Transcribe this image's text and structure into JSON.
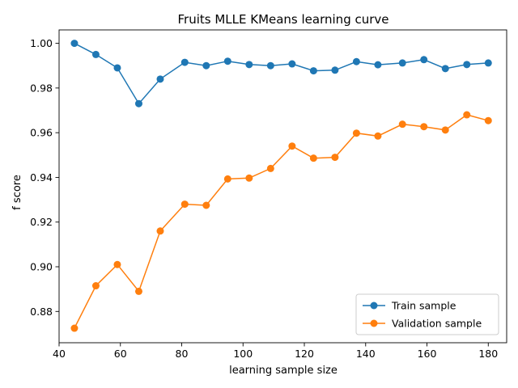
{
  "chart_data": {
    "type": "line",
    "title": "Fruits MLLE KMeans learning curve",
    "xlabel": "learning sample size",
    "ylabel": "f score",
    "xlim": [
      40,
      186
    ],
    "ylim": [
      0.866,
      1.006
    ],
    "xticks": [
      40,
      60,
      80,
      100,
      120,
      140,
      160,
      180
    ],
    "yticks": [
      0.88,
      0.9,
      0.92,
      0.94,
      0.96,
      0.98,
      1.0
    ],
    "ytick_labels": [
      "0.88",
      "0.90",
      "0.92",
      "0.94",
      "0.96",
      "0.98",
      "1.00"
    ],
    "grid": false,
    "legend_position": "lower-right",
    "x": [
      45,
      52,
      59,
      66,
      73,
      81,
      88,
      95,
      102,
      109,
      116,
      123,
      130,
      137,
      144,
      152,
      159,
      166,
      173,
      180
    ],
    "series": [
      {
        "name": "Train sample",
        "color": "#1f77b4",
        "values": [
          1.0,
          0.995,
          0.989,
          0.973,
          0.984,
          0.9915,
          0.99,
          0.992,
          0.9905,
          0.99,
          0.9908,
          0.9877,
          0.988,
          0.9918,
          0.9904,
          0.9912,
          0.9927,
          0.9887,
          0.9905,
          0.9912
        ]
      },
      {
        "name": "Validation sample",
        "color": "#ff7f0e",
        "values": [
          0.8725,
          0.8915,
          0.901,
          0.889,
          0.916,
          0.928,
          0.9275,
          0.9393,
          0.9397,
          0.944,
          0.954,
          0.9486,
          0.949,
          0.9598,
          0.9585,
          0.9638,
          0.9627,
          0.9612,
          0.968,
          0.9654
        ]
      }
    ]
  }
}
